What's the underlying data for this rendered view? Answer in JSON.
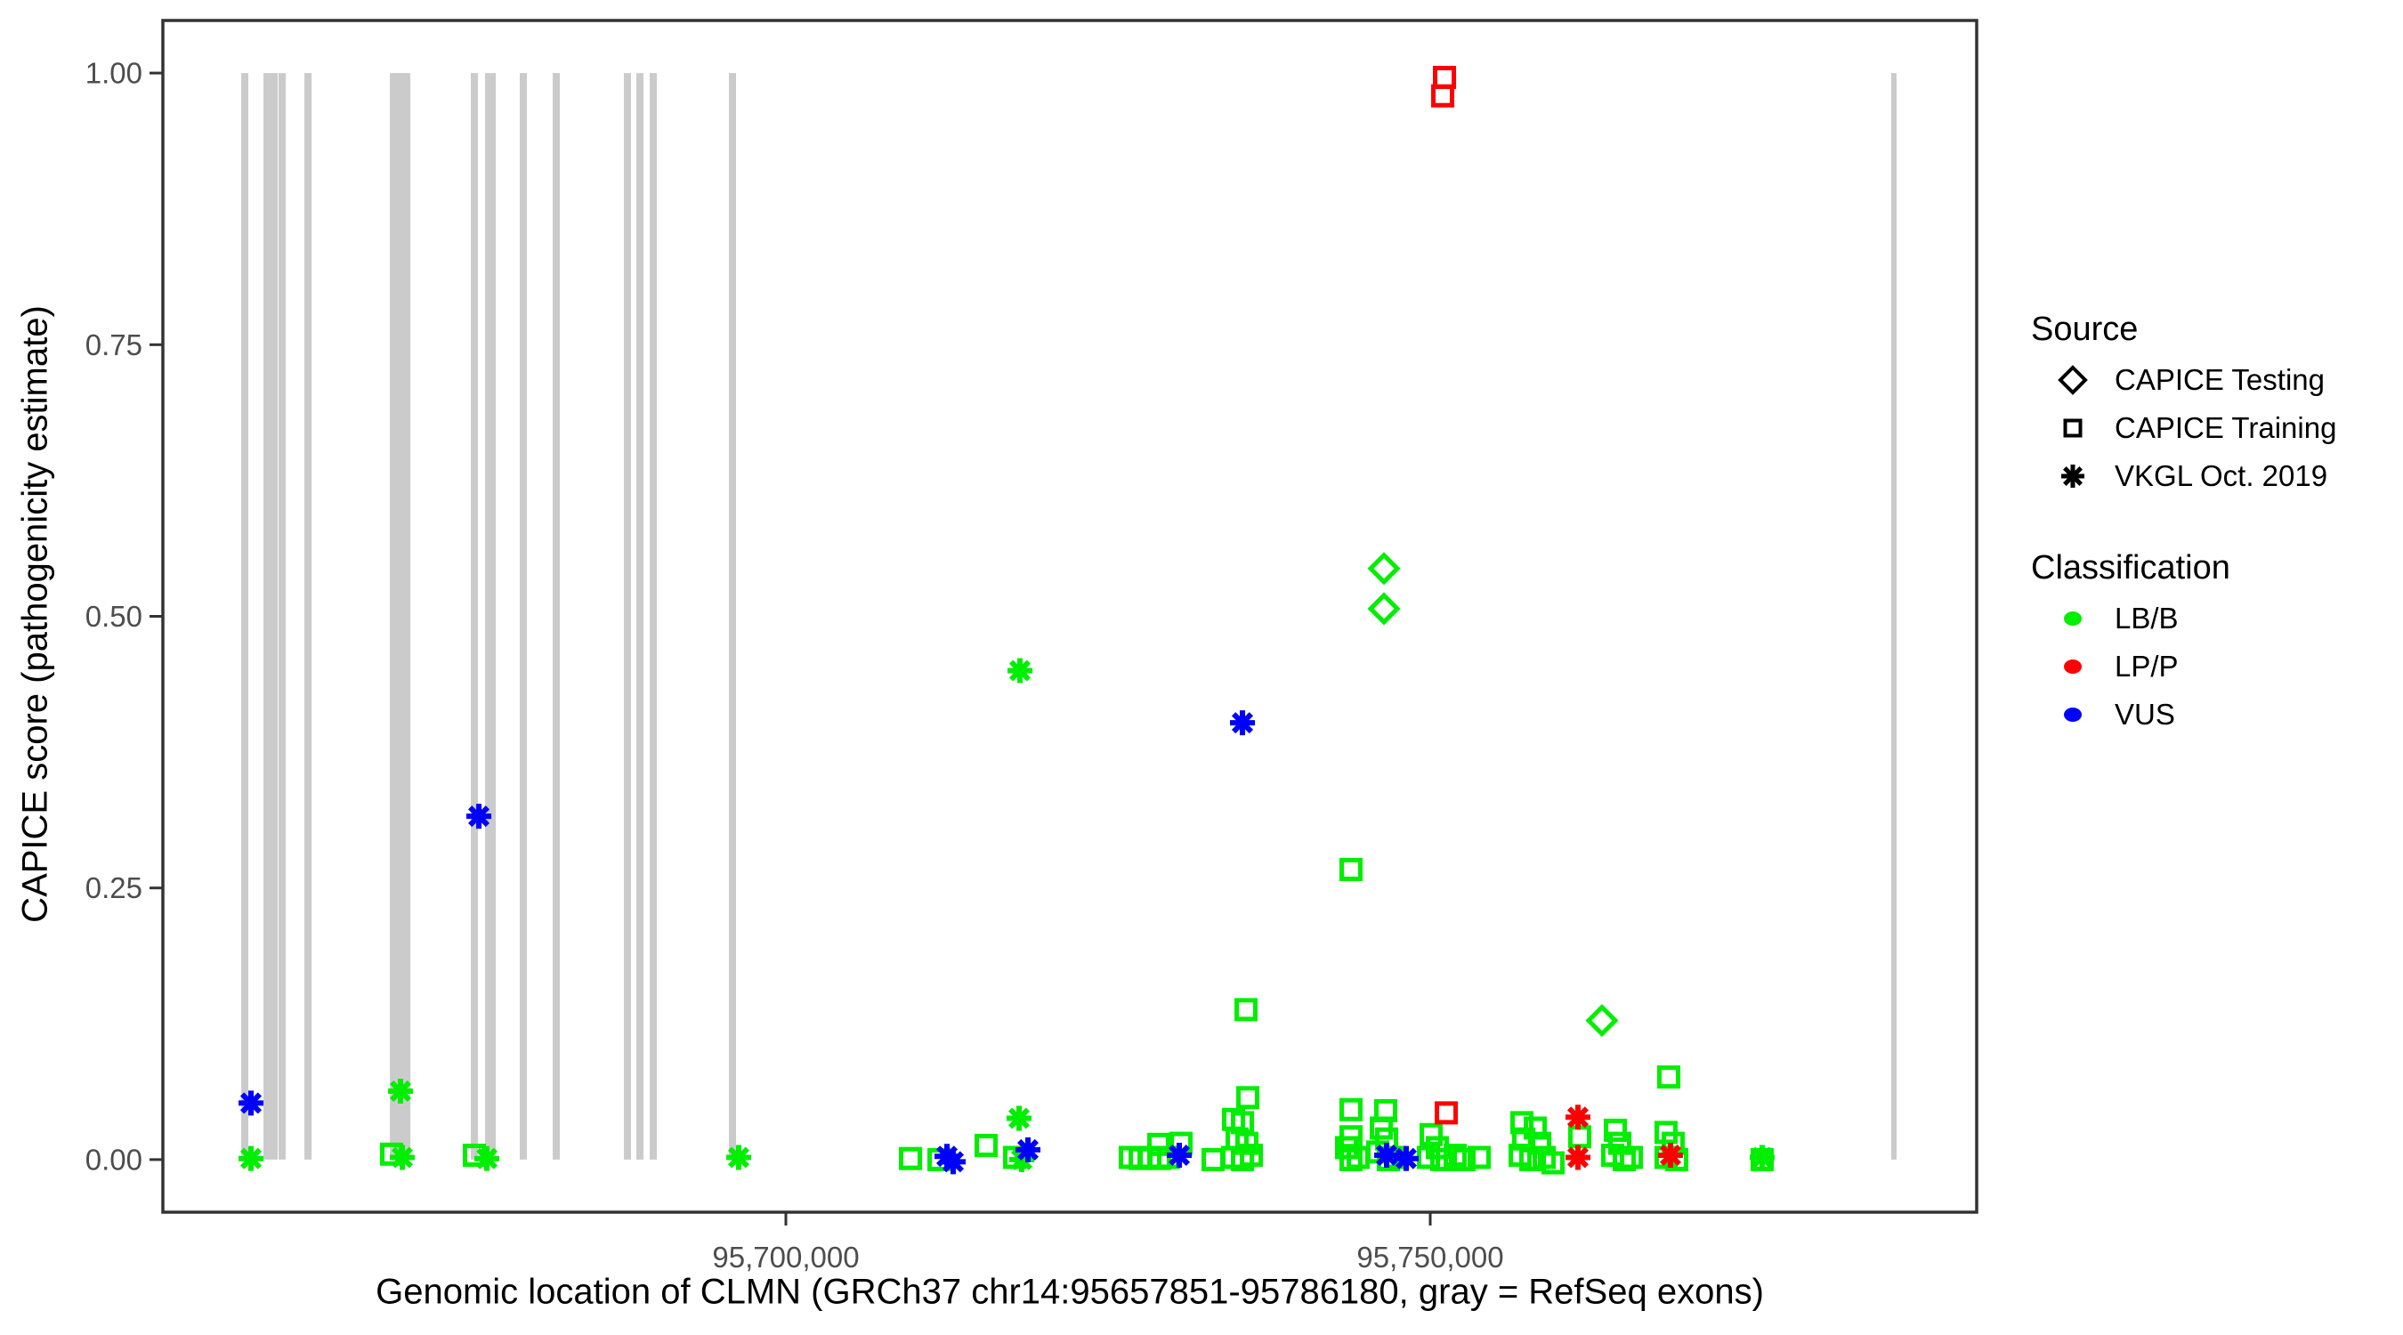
{
  "chart_data": {
    "type": "scatter",
    "title": "",
    "xlabel": "Genomic location of CLMN (GRCh37 chr14:95657851-95786180, gray = RefSeq exons)",
    "ylabel": "CAPICE score (pathogenicity estimate)",
    "axes": {
      "x": {
        "min": 95651657,
        "max": 95792403,
        "ticks": [
          {
            "value": 95700000,
            "label": "95,700,000"
          },
          {
            "value": 95750000,
            "label": "95,750,000"
          }
        ]
      },
      "y": {
        "min": -0.0484,
        "max": 1.0484,
        "ticks": [
          {
            "value": 0.0,
            "label": "0.00"
          },
          {
            "value": 0.25,
            "label": "0.25"
          },
          {
            "value": 0.5,
            "label": "0.50"
          },
          {
            "value": 0.75,
            "label": "0.75"
          },
          {
            "value": 1.0,
            "label": "1.00"
          }
        ]
      }
    },
    "exon_color": "#cbcbcb",
    "exons": [
      [
        95657736,
        95658288
      ],
      [
        95659462,
        95660014
      ],
      [
        95660014,
        95660566
      ],
      [
        95660636,
        95661188
      ],
      [
        95662639,
        95663191
      ],
      [
        95669273,
        95670861
      ],
      [
        95675553,
        95676105
      ],
      [
        95676658,
        95677486
      ],
      [
        95679351,
        95679903
      ],
      [
        95681907,
        95682459
      ],
      [
        95687431,
        95687983
      ],
      [
        95688398,
        95688950
      ],
      [
        95689434,
        95689986
      ],
      [
        95695580,
        95696132
      ],
      [
        95785773,
        95786187
      ]
    ],
    "points_format": [
      "genomic_position",
      "capice_score",
      "source_key",
      "classification"
    ],
    "points": [
      [
        95751106,
        0.996,
        "training",
        "LP/P"
      ],
      [
        95750968,
        0.979,
        "training",
        "LP/P"
      ],
      [
        95746409,
        0.544,
        "testing",
        "LB/B"
      ],
      [
        95746409,
        0.507,
        "testing",
        "LB/B"
      ],
      [
        95718163,
        0.45,
        "vkgl",
        "LB/B"
      ],
      [
        95735428,
        0.402,
        "vkgl",
        "VUS"
      ],
      [
        95676177,
        0.316,
        "vkgl",
        "VUS"
      ],
      [
        95743853,
        0.267,
        "training",
        "LB/B"
      ],
      [
        95735704,
        0.138,
        "training",
        "LB/B"
      ],
      [
        95763327,
        0.128,
        "testing",
        "LB/B"
      ],
      [
        95768506,
        0.076,
        "training",
        "LB/B"
      ],
      [
        95751244,
        0.043,
        "training",
        "LP/P"
      ],
      [
        95761462,
        0.039,
        "vkgl",
        "LP/P"
      ],
      [
        95761462,
        0.002,
        "vkgl",
        "LP/P"
      ],
      [
        95768644,
        0.004,
        "vkgl",
        "LP/P"
      ],
      [
        95658494,
        0.052,
        "vkgl",
        "VUS"
      ],
      [
        95658494,
        0.001,
        "vkgl",
        "LB/B"
      ],
      [
        95670096,
        0.063,
        "vkgl",
        "LB/B"
      ],
      [
        95669405,
        0.005,
        "training",
        "LB/B"
      ],
      [
        95670234,
        0.002,
        "vkgl",
        "LB/B"
      ],
      [
        95675829,
        0.004,
        "training",
        "LB/B"
      ],
      [
        95676796,
        0.001,
        "vkgl",
        "LB/B"
      ],
      [
        95696340,
        0.002,
        "vkgl",
        "LB/B"
      ],
      [
        95709668,
        0.001,
        "training",
        "LB/B"
      ],
      [
        95711878,
        0.0,
        "training",
        "LB/B"
      ],
      [
        95712500,
        0.003,
        "vkgl",
        "VUS"
      ],
      [
        95712983,
        -0.002,
        "vkgl",
        "VUS"
      ],
      [
        95715539,
        0.013,
        "training",
        "LB/B"
      ],
      [
        95718094,
        0.038,
        "vkgl",
        "LB/B"
      ],
      [
        95718785,
        0.009,
        "vkgl",
        "VUS"
      ],
      [
        95717749,
        0.002,
        "training",
        "LB/B"
      ],
      [
        95718301,
        0.0,
        "vkgl",
        "LB/B"
      ],
      [
        95726728,
        0.002,
        "training",
        "LB/B"
      ],
      [
        95727488,
        0.001,
        "training",
        "LB/B"
      ],
      [
        95728247,
        0.002,
        "training",
        "LB/B"
      ],
      [
        95729007,
        0.001,
        "training",
        "LB/B"
      ],
      [
        95729697,
        0.002,
        "training",
        "LB/B"
      ],
      [
        95728938,
        0.014,
        "training",
        "LB/B"
      ],
      [
        95730664,
        0.015,
        "training",
        "LB/B"
      ],
      [
        95730526,
        0.004,
        "vkgl",
        "VUS"
      ],
      [
        95733150,
        0.0,
        "training",
        "LB/B"
      ],
      [
        95735842,
        0.057,
        "training",
        "LB/B"
      ],
      [
        95734737,
        0.037,
        "training",
        "LB/B"
      ],
      [
        95735428,
        0.034,
        "training",
        "LB/B"
      ],
      [
        95735013,
        0.019,
        "training",
        "LB/B"
      ],
      [
        95735773,
        0.015,
        "training",
        "LB/B"
      ],
      [
        95734668,
        0.002,
        "training",
        "LB/B"
      ],
      [
        95735428,
        0.0,
        "training",
        "LB/B"
      ],
      [
        95736119,
        0.004,
        "training",
        "LB/B"
      ],
      [
        95743853,
        0.046,
        "training",
        "LB/B"
      ],
      [
        95743853,
        0.021,
        "training",
        "LB/B"
      ],
      [
        95743508,
        0.011,
        "training",
        "LB/B"
      ],
      [
        95743853,
        0.0,
        "training",
        "LB/B"
      ],
      [
        95744405,
        0.002,
        "training",
        "LB/B"
      ],
      [
        95746547,
        0.045,
        "training",
        "LB/B"
      ],
      [
        95746202,
        0.029,
        "training",
        "LB/B"
      ],
      [
        95746616,
        0.019,
        "training",
        "LB/B"
      ],
      [
        95745926,
        0.007,
        "training",
        "LB/B"
      ],
      [
        95746754,
        0.0,
        "training",
        "LB/B"
      ],
      [
        95747307,
        0.002,
        "training",
        "LB/B"
      ],
      [
        95746616,
        0.004,
        "vkgl",
        "VUS"
      ],
      [
        95748135,
        0.001,
        "vkgl",
        "VUS"
      ],
      [
        95750069,
        0.023,
        "training",
        "LB/B"
      ],
      [
        95750552,
        0.011,
        "training",
        "LB/B"
      ],
      [
        95749862,
        0.002,
        "training",
        "LB/B"
      ],
      [
        95750898,
        0.0,
        "training",
        "LB/B"
      ],
      [
        95751934,
        0.004,
        "training",
        "LB/B"
      ],
      [
        95752624,
        0.0,
        "training",
        "LB/B"
      ],
      [
        95753798,
        0.002,
        "training",
        "LB/B"
      ],
      [
        95757113,
        0.034,
        "training",
        "LB/B"
      ],
      [
        95758149,
        0.029,
        "training",
        "LB/B"
      ],
      [
        95757251,
        0.019,
        "training",
        "LB/B"
      ],
      [
        95758494,
        0.015,
        "training",
        "LB/B"
      ],
      [
        95756975,
        0.004,
        "training",
        "LB/B"
      ],
      [
        95757804,
        0.0,
        "training",
        "LB/B"
      ],
      [
        95758840,
        0.002,
        "training",
        "LB/B"
      ],
      [
        95759530,
        -0.003,
        "training",
        "LB/B"
      ],
      [
        95761601,
        0.021,
        "training",
        "LB/B"
      ],
      [
        95764363,
        0.027,
        "training",
        "LB/B"
      ],
      [
        95764708,
        0.015,
        "training",
        "LB/B"
      ],
      [
        95764156,
        0.004,
        "training",
        "LB/B"
      ],
      [
        95765053,
        0.0,
        "training",
        "LB/B"
      ],
      [
        95765606,
        0.002,
        "training",
        "LB/B"
      ],
      [
        95768299,
        0.025,
        "training",
        "LB/B"
      ],
      [
        95768851,
        0.015,
        "training",
        "LB/B"
      ],
      [
        95768299,
        0.002,
        "training",
        "LB/B"
      ],
      [
        95769127,
        0.0,
        "training",
        "LB/B"
      ],
      [
        95775756,
        0.0,
        "training",
        "LB/B"
      ],
      [
        95775756,
        0.002,
        "vkgl",
        "LB/B"
      ]
    ]
  },
  "legend": {
    "source": {
      "title": "Source",
      "items": [
        {
          "key": "testing",
          "label": "CAPICE Testing",
          "shape": "diamond"
        },
        {
          "key": "training",
          "label": "CAPICE Training",
          "shape": "square"
        },
        {
          "key": "vkgl",
          "label": "VKGL Oct. 2019",
          "shape": "asterisk"
        }
      ]
    },
    "classification": {
      "title": "Classification",
      "items": [
        {
          "label": "LB/B",
          "color": "#00ee00"
        },
        {
          "label": "LP/P",
          "color": "#ff0000"
        },
        {
          "label": "VUS",
          "color": "#0000ff"
        }
      ]
    }
  },
  "colors": {
    "LB/B": "#00ee00",
    "LP/P": "#ff0000",
    "VUS": "#0000ff",
    "tick_label": "#4d4d4d",
    "panel_border": "#333333"
  }
}
